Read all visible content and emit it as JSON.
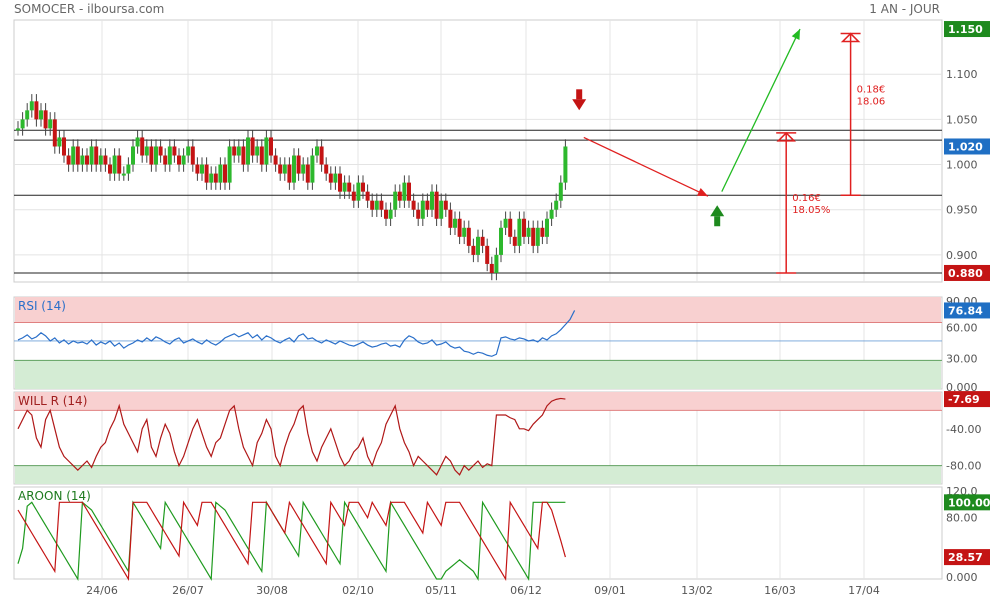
{
  "header": {
    "title": "SOMOCER - ilboursa.com",
    "period": "1 AN - JOUR"
  },
  "colors": {
    "up": "#2db82d",
    "down": "#c41414",
    "rsi_line": "#2a6fc9",
    "green_badge": "#1e8a1e",
    "red_badge": "#c41414",
    "blue_badge": "#1f6fc4",
    "overbought_zone": "#f8d0d0",
    "oversold_zone": "#d4ecd4",
    "aroon_up": "#1e9a1e",
    "aroon_down": "#c41414"
  },
  "x_axis": {
    "labels": [
      "24/06",
      "26/07",
      "30/08",
      "02/10",
      "05/11",
      "06/12",
      "09/01",
      "13/02",
      "16/03",
      "17/04"
    ]
  },
  "chart_data": [
    {
      "type": "candlestick",
      "name": "price",
      "ylim": [
        0.87,
        1.16
      ],
      "y_ticks": [
        "1.100",
        "1.050",
        "1.000",
        "0.950",
        "0.900"
      ],
      "badges": [
        {
          "value": 1.15,
          "label": "1.150",
          "color": "green"
        },
        {
          "value": 1.02,
          "label": "1.020",
          "color": "blue"
        },
        {
          "value": 0.88,
          "label": "0.880",
          "color": "red"
        }
      ],
      "horizontal_levels": [
        1.038,
        1.027,
        0.966,
        0.88
      ],
      "closes": [
        1.04,
        1.05,
        1.06,
        1.07,
        1.05,
        1.06,
        1.04,
        1.05,
        1.02,
        1.03,
        1.01,
        1.0,
        1.02,
        1.0,
        1.01,
        1.0,
        1.02,
        1.0,
        1.01,
        1.0,
        0.99,
        1.01,
        0.99,
        0.99,
        1.0,
        1.02,
        1.03,
        1.01,
        1.02,
        1.0,
        1.02,
        1.01,
        1.0,
        1.02,
        1.01,
        1.0,
        1.01,
        1.02,
        1.0,
        0.99,
        1.0,
        0.98,
        0.99,
        0.98,
        1.0,
        0.98,
        1.02,
        1.01,
        1.02,
        1.0,
        1.03,
        1.01,
        1.02,
        1.0,
        1.03,
        1.01,
        1.0,
        0.99,
        1.0,
        0.98,
        1.01,
        0.99,
        1.0,
        0.98,
        1.01,
        1.02,
        1.0,
        0.99,
        0.98,
        0.99,
        0.97,
        0.98,
        0.97,
        0.96,
        0.98,
        0.97,
        0.96,
        0.95,
        0.96,
        0.95,
        0.94,
        0.95,
        0.97,
        0.96,
        0.98,
        0.96,
        0.95,
        0.94,
        0.96,
        0.95,
        0.97,
        0.94,
        0.96,
        0.95,
        0.93,
        0.94,
        0.92,
        0.93,
        0.91,
        0.9,
        0.92,
        0.91,
        0.89,
        0.88,
        0.9,
        0.93,
        0.94,
        0.92,
        0.91,
        0.94,
        0.92,
        0.93,
        0.91,
        0.93,
        0.92,
        0.94,
        0.95,
        0.96,
        0.98,
        1.02
      ],
      "arrows": [
        {
          "kind": "down",
          "color": "red",
          "at_index": 122,
          "value": 1.07
        },
        {
          "kind": "line",
          "color": "red",
          "from": [
            123,
            1.03
          ],
          "to": [
            150,
            0.965
          ]
        },
        {
          "kind": "up",
          "color": "green",
          "at_index": 152,
          "value": 0.945
        },
        {
          "kind": "line",
          "color": "green",
          "from": [
            153,
            0.97
          ],
          "to": [
            170,
            1.15
          ]
        }
      ],
      "ranges": [
        {
          "color": "red",
          "at_index": 167,
          "from": 0.88,
          "to": 1.035,
          "label1": "0.16€",
          "label2": "18.05%"
        },
        {
          "color": "red",
          "at_index": 181,
          "from": 0.966,
          "to": 1.145,
          "label1": "0.18€",
          "label2": "18.06"
        }
      ]
    },
    {
      "type": "line",
      "name": "RSI (14)",
      "ylim": [
        0,
        90
      ],
      "y_ticks": [
        "90.00",
        "60.00",
        "30.00",
        "0.000"
      ],
      "zones": {
        "upper": [
          65,
          90
        ],
        "lower": [
          0,
          28
        ]
      },
      "mid_line": 47,
      "badge": {
        "label": "76.84",
        "color": "blue"
      },
      "values": [
        48,
        50,
        53,
        49,
        51,
        55,
        52,
        47,
        50,
        45,
        48,
        44,
        47,
        45,
        46,
        44,
        48,
        43,
        46,
        44,
        47,
        42,
        45,
        40,
        43,
        45,
        48,
        46,
        50,
        47,
        51,
        49,
        46,
        44,
        48,
        50,
        45,
        47,
        49,
        46,
        44,
        48,
        45,
        43,
        46,
        50,
        52,
        54,
        51,
        53,
        55,
        50,
        53,
        48,
        52,
        50,
        47,
        45,
        48,
        50,
        46,
        52,
        54,
        49,
        50,
        47,
        45,
        48,
        46,
        44,
        47,
        45,
        43,
        42,
        44,
        46,
        43,
        41,
        42,
        44,
        45,
        42,
        43,
        41,
        48,
        52,
        50,
        46,
        44,
        45,
        48,
        43,
        44,
        46,
        42,
        40,
        41,
        37,
        36,
        34,
        36,
        35,
        33,
        32,
        34,
        50,
        51,
        49,
        48,
        50,
        49,
        47,
        48,
        46,
        50,
        48,
        52,
        54,
        58,
        63,
        68,
        76.84
      ]
    },
    {
      "type": "line",
      "name": "WILL R (14)",
      "ylim": [
        -100,
        0
      ],
      "y_ticks": [
        "-7.69",
        "-40.00",
        "-80.00"
      ],
      "zones": {
        "upper": [
          -20,
          0
        ],
        "lower": [
          -100,
          -80
        ]
      },
      "badge": {
        "label": "-7.69",
        "color": "red"
      },
      "values": [
        -40,
        -30,
        -20,
        -25,
        -50,
        -60,
        -30,
        -20,
        -40,
        -60,
        -70,
        -75,
        -80,
        -85,
        -80,
        -75,
        -82,
        -70,
        -60,
        -55,
        -40,
        -30,
        -15,
        -35,
        -45,
        -55,
        -65,
        -40,
        -30,
        -60,
        -70,
        -50,
        -35,
        -45,
        -65,
        -80,
        -70,
        -55,
        -40,
        -30,
        -45,
        -60,
        -70,
        -55,
        -50,
        -35,
        -20,
        -15,
        -40,
        -60,
        -70,
        -80,
        -55,
        -45,
        -30,
        -40,
        -70,
        -80,
        -60,
        -45,
        -35,
        -20,
        -15,
        -45,
        -65,
        -75,
        -60,
        -50,
        -40,
        -55,
        -70,
        -80,
        -75,
        -65,
        -60,
        -50,
        -70,
        -80,
        -65,
        -55,
        -35,
        -25,
        -15,
        -40,
        -55,
        -65,
        -80,
        -70,
        -75,
        -80,
        -85,
        -90,
        -80,
        -70,
        -75,
        -85,
        -90,
        -80,
        -85,
        -80,
        -75,
        -82,
        -78,
        -80,
        -25,
        -25,
        -25,
        -28,
        -30,
        -40,
        -40,
        -42,
        -35,
        -30,
        -25,
        -15,
        -10,
        -8,
        -7,
        -7.69
      ]
    },
    {
      "type": "line",
      "name": "AROON (14)",
      "ylim": [
        0,
        120
      ],
      "y_ticks": [
        "120.0",
        "100.00",
        "80.00",
        "28.57",
        "0.000"
      ],
      "series": [
        {
          "name": "up",
          "color": "green",
          "badge": "100.00",
          "values": [
            20,
            40,
            95,
            100,
            90,
            80,
            70,
            60,
            50,
            40,
            30,
            20,
            10,
            0,
            100,
            95,
            90,
            80,
            70,
            60,
            50,
            40,
            30,
            20,
            10,
            100,
            90,
            80,
            70,
            60,
            50,
            40,
            100,
            90,
            80,
            70,
            60,
            50,
            40,
            30,
            20,
            10,
            0,
            100,
            95,
            90,
            80,
            70,
            60,
            50,
            40,
            30,
            20,
            10,
            100,
            90,
            80,
            70,
            60,
            50,
            40,
            30,
            100,
            90,
            80,
            70,
            60,
            50,
            40,
            30,
            20,
            100,
            90,
            80,
            70,
            60,
            50,
            40,
            30,
            20,
            10,
            100,
            90,
            80,
            70,
            60,
            50,
            40,
            30,
            20,
            10,
            0,
            0,
            10,
            15,
            20,
            25,
            20,
            15,
            10,
            0,
            100,
            90,
            80,
            70,
            60,
            50,
            40,
            30,
            20,
            10,
            0,
            100,
            100,
            100,
            100,
            100,
            100,
            100,
            100
          ]
        },
        {
          "name": "down",
          "color": "red",
          "badge": "28.57",
          "values": [
            90,
            80,
            70,
            60,
            50,
            40,
            30,
            20,
            10,
            100,
            100,
            100,
            100,
            100,
            100,
            90,
            80,
            70,
            60,
            50,
            40,
            30,
            20,
            10,
            0,
            100,
            100,
            100,
            100,
            90,
            80,
            70,
            60,
            50,
            40,
            30,
            100,
            90,
            80,
            70,
            100,
            100,
            100,
            90,
            80,
            70,
            60,
            50,
            40,
            30,
            20,
            100,
            100,
            100,
            100,
            90,
            80,
            70,
            60,
            100,
            90,
            80,
            70,
            60,
            50,
            40,
            30,
            20,
            100,
            90,
            80,
            70,
            100,
            100,
            100,
            90,
            80,
            100,
            90,
            80,
            70,
            100,
            100,
            100,
            100,
            90,
            80,
            70,
            60,
            100,
            90,
            80,
            70,
            100,
            100,
            100,
            100,
            90,
            80,
            70,
            60,
            50,
            40,
            30,
            20,
            10,
            0,
            100,
            90,
            80,
            70,
            60,
            50,
            40,
            100,
            100,
            90,
            70,
            50,
            28.57
          ]
        }
      ]
    }
  ]
}
